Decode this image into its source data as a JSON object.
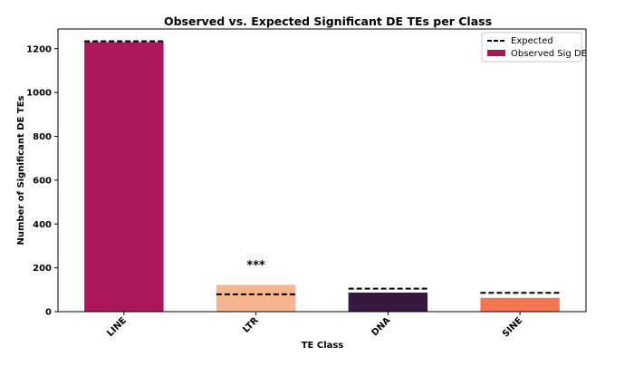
{
  "chart_data": {
    "type": "bar",
    "title": "Observed vs. Expected Significant DE TEs per Class",
    "xlabel": "TE Class",
    "ylabel": "Number of Significant DE TEs",
    "categories": [
      "LINE",
      "LTR",
      "DNA",
      "SINE"
    ],
    "series": [
      {
        "name": "Observed Sig DE",
        "values": [
          1230,
          122,
          87,
          63
        ],
        "colors": [
          "#ad1759",
          "#f6b48f",
          "#35193e",
          "#f37651"
        ]
      },
      {
        "name": "Expected",
        "values": [
          1234,
          79,
          105,
          86
        ],
        "style": "dashed",
        "color": "#000000"
      }
    ],
    "yticks": [
      0,
      200,
      400,
      600,
      800,
      1000,
      1200
    ],
    "ylim": [
      0,
      1290
    ],
    "annotations": [
      {
        "category": "LTR",
        "text": "***",
        "y": 215
      }
    ],
    "legend": {
      "position": "top-right",
      "entries": [
        "Expected",
        "Observed Sig DE"
      ]
    }
  }
}
